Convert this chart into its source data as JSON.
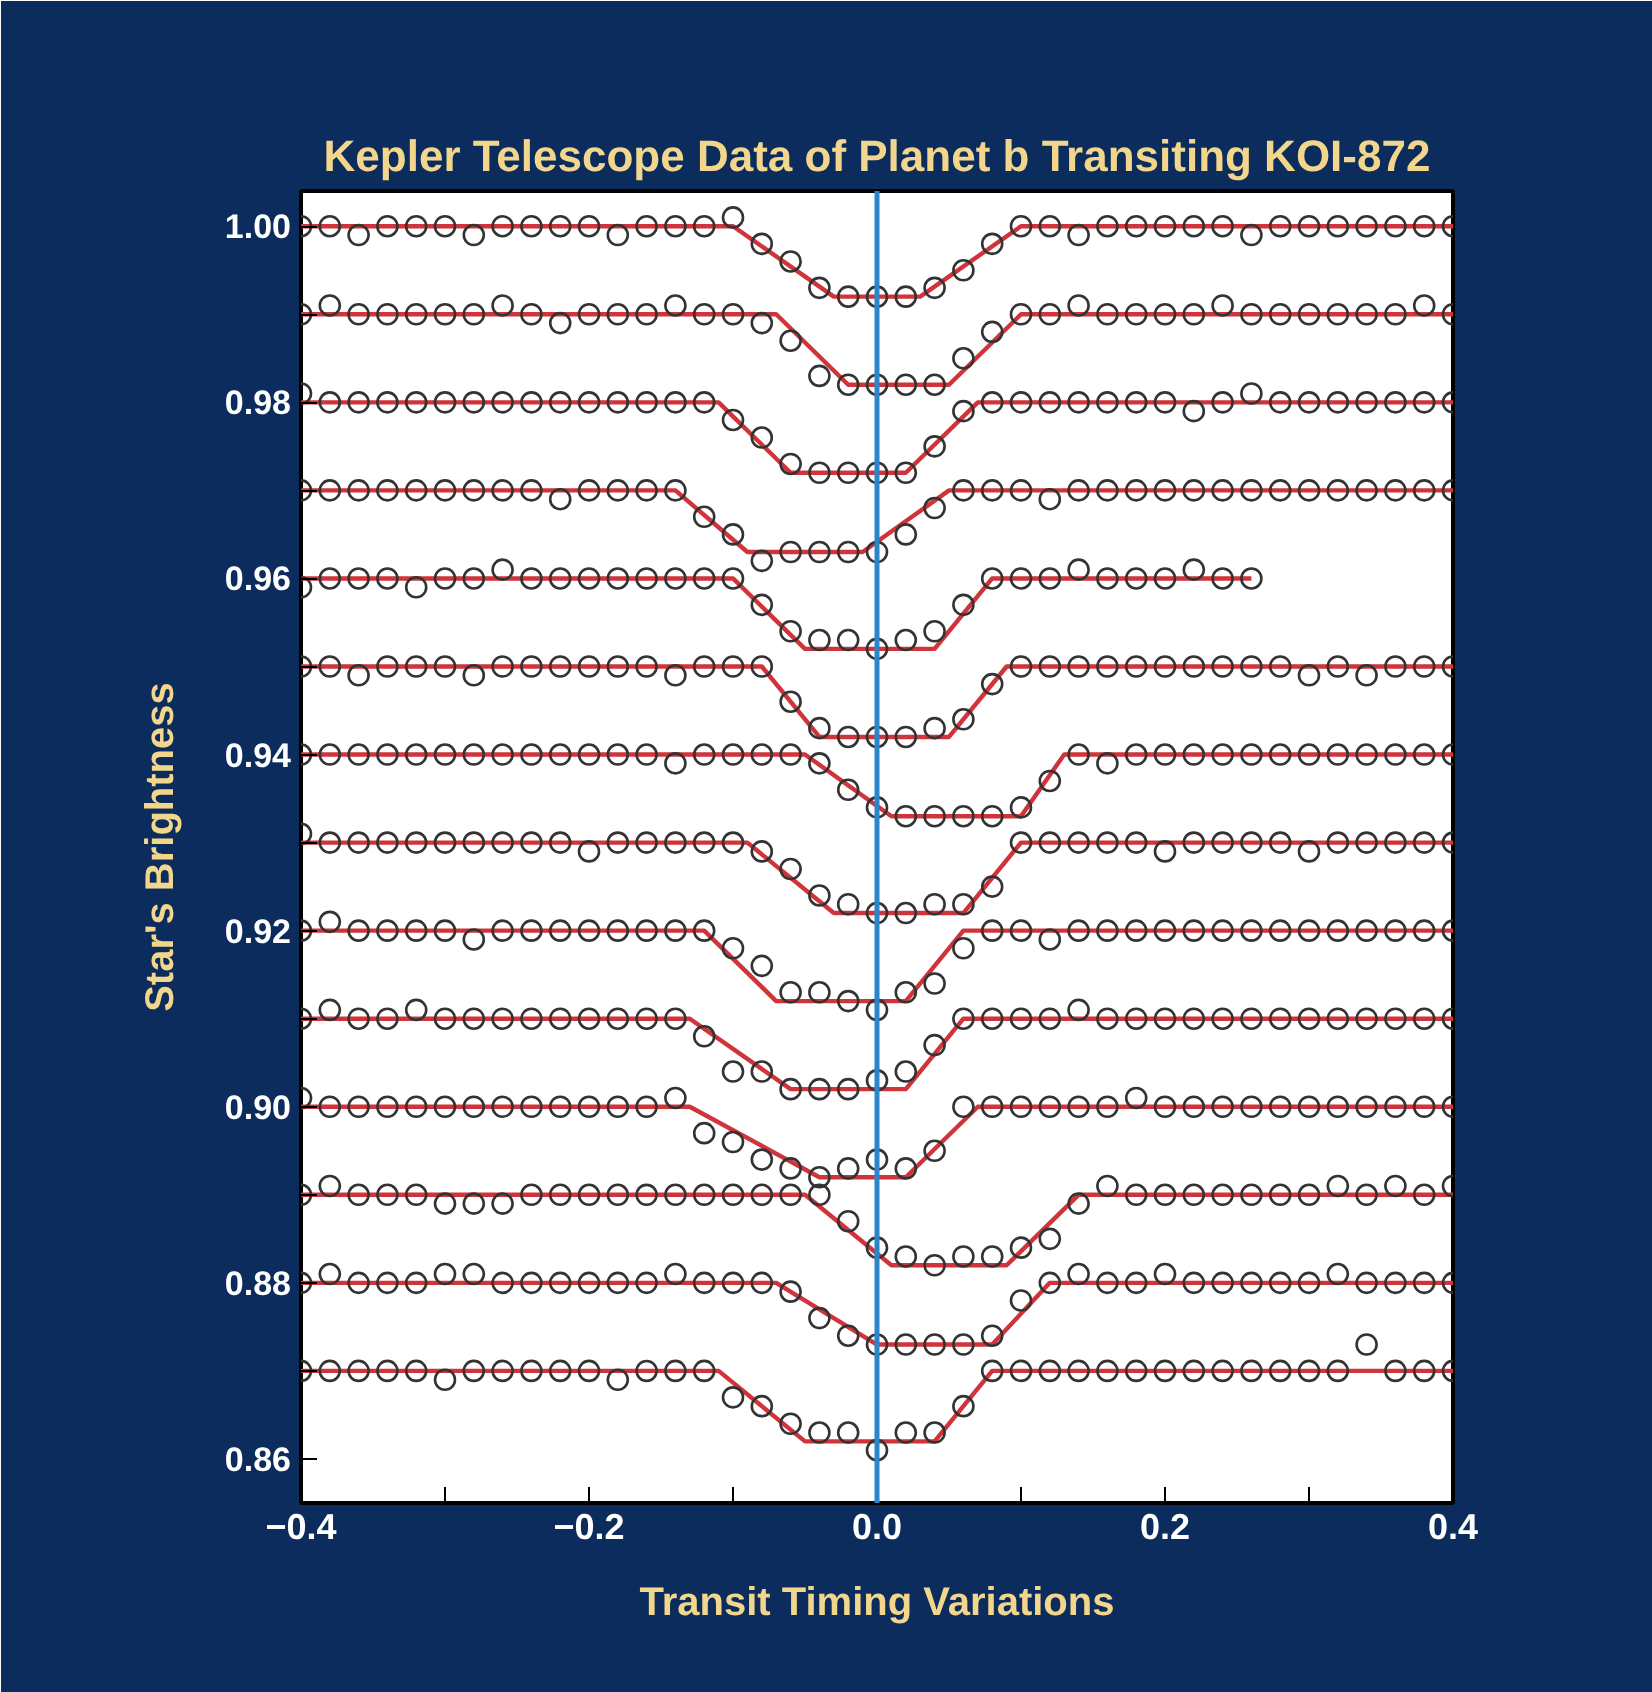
{
  "chart_data": {
    "type": "scatter",
    "title": "Kepler Telescope Data of Planet b Transiting KOI-872",
    "xlabel": "Transit Timing Variations",
    "ylabel": "Star's Brightness",
    "xlim": [
      -0.4,
      0.4
    ],
    "ylim": [
      0.855,
      1.004
    ],
    "xticks": [
      {
        "value": -0.4,
        "label": "−0.4"
      },
      {
        "value": -0.3,
        "label": null
      },
      {
        "value": -0.2,
        "label": "−0.2"
      },
      {
        "value": -0.1,
        "label": null
      },
      {
        "value": 0.0,
        "label": "0.0"
      },
      {
        "value": 0.1,
        "label": null
      },
      {
        "value": 0.2,
        "label": "0.2"
      },
      {
        "value": 0.3,
        "label": null
      },
      {
        "value": 0.4,
        "label": "0.4"
      }
    ],
    "yticks": [
      {
        "value": 0.86,
        "label": "0.86"
      },
      {
        "value": 0.87,
        "label": null
      },
      {
        "value": 0.88,
        "label": "0.88"
      },
      {
        "value": 0.89,
        "label": null
      },
      {
        "value": 0.9,
        "label": "0.90"
      },
      {
        "value": 0.91,
        "label": null
      },
      {
        "value": 0.92,
        "label": "0.92"
      },
      {
        "value": 0.93,
        "label": null
      },
      {
        "value": 0.94,
        "label": "0.94"
      },
      {
        "value": 0.95,
        "label": null
      },
      {
        "value": 0.96,
        "label": "0.96"
      },
      {
        "value": 0.97,
        "label": null
      },
      {
        "value": 0.98,
        "label": "0.98"
      },
      {
        "value": 0.99,
        "label": null
      },
      {
        "value": 1.0,
        "label": "1.00"
      }
    ],
    "grid": false,
    "ref_lines": [
      {
        "axis": "x",
        "value": 0.0,
        "color": "#2a86c8"
      }
    ],
    "x": [
      -0.4,
      -0.38,
      -0.36,
      -0.34,
      -0.32,
      -0.3,
      -0.28,
      -0.26,
      -0.24,
      -0.22,
      -0.2,
      -0.18,
      -0.16,
      -0.14,
      -0.12,
      -0.1,
      -0.08,
      -0.06,
      -0.04,
      -0.02,
      0.0,
      0.02,
      0.04,
      0.06,
      0.08,
      0.1,
      0.12,
      0.14,
      0.16,
      0.18,
      0.2,
      0.22,
      0.24,
      0.26,
      0.28,
      0.3,
      0.32,
      0.34,
      0.36,
      0.38,
      0.4
    ],
    "series": [
      {
        "type": "line",
        "marker": "none",
        "color": "#d0343a",
        "x": [
          -0.4,
          -0.1,
          -0.03,
          0.03,
          0.1,
          0.4
        ],
        "values": [
          1.0,
          1.0,
          0.992,
          0.992,
          1.0,
          1.0
        ]
      },
      {
        "marker": "circle",
        "color": "#333333",
        "values": [
          1.0,
          1.0,
          0.999,
          1.0,
          1.0,
          1.0,
          0.999,
          1.0,
          1.0,
          1.0,
          1.0,
          0.999,
          1.0,
          1.0,
          1.0,
          1.001,
          0.998,
          0.996,
          0.993,
          0.992,
          0.992,
          0.992,
          0.993,
          0.995,
          0.998,
          1.0,
          1.0,
          0.999,
          1.0,
          1.0,
          1.0,
          1.0,
          1.0,
          0.999,
          1.0,
          1.0,
          1.0,
          1.0,
          1.0,
          1.0,
          1.0
        ]
      },
      {
        "type": "line",
        "marker": "none",
        "color": "#d0343a",
        "x": [
          -0.4,
          -0.07,
          -0.02,
          0.05,
          0.1,
          0.4
        ],
        "values": [
          0.99,
          0.99,
          0.982,
          0.982,
          0.99,
          0.99
        ]
      },
      {
        "marker": "circle",
        "color": "#333333",
        "values": [
          0.99,
          0.991,
          0.99,
          0.99,
          0.99,
          0.99,
          0.99,
          0.991,
          0.99,
          0.989,
          0.99,
          0.99,
          0.99,
          0.991,
          0.99,
          0.99,
          0.989,
          0.987,
          0.983,
          0.982,
          0.982,
          0.982,
          0.982,
          0.985,
          0.988,
          0.99,
          0.99,
          0.991,
          0.99,
          0.99,
          0.99,
          0.99,
          0.991,
          0.99,
          0.99,
          0.99,
          0.99,
          0.99,
          0.99,
          0.991,
          0.99
        ]
      },
      {
        "type": "line",
        "marker": "none",
        "color": "#d0343a",
        "x": [
          -0.4,
          -0.11,
          -0.06,
          0.02,
          0.07,
          0.4
        ],
        "values": [
          0.98,
          0.98,
          0.972,
          0.972,
          0.98,
          0.98
        ]
      },
      {
        "marker": "circle",
        "color": "#333333",
        "values": [
          0.981,
          0.98,
          0.98,
          0.98,
          0.98,
          0.98,
          0.98,
          0.98,
          0.98,
          0.98,
          0.98,
          0.98,
          0.98,
          0.98,
          0.98,
          0.978,
          0.976,
          0.973,
          0.972,
          0.972,
          0.972,
          0.972,
          0.975,
          0.979,
          0.98,
          0.98,
          0.98,
          0.98,
          0.98,
          0.98,
          0.98,
          0.979,
          0.98,
          0.981,
          0.98,
          0.98,
          0.98,
          0.98,
          0.98,
          0.98,
          0.98
        ]
      },
      {
        "type": "line",
        "marker": "none",
        "color": "#d0343a",
        "x": [
          -0.4,
          -0.14,
          -0.09,
          -0.01,
          0.05,
          0.4
        ],
        "values": [
          0.97,
          0.97,
          0.963,
          0.963,
          0.97,
          0.97
        ]
      },
      {
        "marker": "circle",
        "color": "#333333",
        "values": [
          0.97,
          0.97,
          0.97,
          0.97,
          0.97,
          0.97,
          0.97,
          0.97,
          0.97,
          0.969,
          0.97,
          0.97,
          0.97,
          0.97,
          0.967,
          0.965,
          0.962,
          0.963,
          0.963,
          0.963,
          0.963,
          0.965,
          0.968,
          0.97,
          0.97,
          0.97,
          0.969,
          0.97,
          0.97,
          0.97,
          0.97,
          0.97,
          0.97,
          0.97,
          0.97,
          0.97,
          0.97,
          0.97,
          0.97,
          0.97,
          0.97
        ]
      },
      {
        "type": "line",
        "marker": "none",
        "color": "#d0343a",
        "x": [
          -0.4,
          -0.1,
          -0.05,
          0.04,
          0.08,
          0.26
        ],
        "values": [
          0.96,
          0.96,
          0.952,
          0.952,
          0.96,
          0.96
        ]
      },
      {
        "marker": "circle",
        "color": "#333333",
        "values": [
          0.959,
          0.96,
          0.96,
          0.96,
          0.959,
          0.96,
          0.96,
          0.961,
          0.96,
          0.96,
          0.96,
          0.96,
          0.96,
          0.96,
          0.96,
          0.96,
          0.957,
          0.954,
          0.953,
          0.953,
          0.952,
          0.953,
          0.954,
          0.957,
          0.96,
          0.96,
          0.96,
          0.961,
          0.96,
          0.96,
          0.96,
          0.961,
          0.96,
          0.96,
          null,
          null,
          null,
          null,
          null,
          null,
          null
        ]
      },
      {
        "type": "line",
        "marker": "none",
        "color": "#d0343a",
        "x": [
          -0.4,
          -0.08,
          -0.04,
          0.05,
          0.09,
          0.4
        ],
        "values": [
          0.95,
          0.95,
          0.942,
          0.942,
          0.95,
          0.95
        ]
      },
      {
        "marker": "circle",
        "color": "#333333",
        "values": [
          0.95,
          0.95,
          0.949,
          0.95,
          0.95,
          0.95,
          0.949,
          0.95,
          0.95,
          0.95,
          0.95,
          0.95,
          0.95,
          0.949,
          0.95,
          0.95,
          0.95,
          0.946,
          0.943,
          0.942,
          0.942,
          0.942,
          0.943,
          0.944,
          0.948,
          0.95,
          0.95,
          0.95,
          0.95,
          0.95,
          0.95,
          0.95,
          0.95,
          0.95,
          0.95,
          0.949,
          0.95,
          0.949,
          0.95,
          0.95,
          0.95
        ]
      },
      {
        "type": "line",
        "marker": "none",
        "color": "#d0343a",
        "x": [
          -0.4,
          -0.05,
          0.01,
          0.1,
          0.13,
          0.4
        ],
        "values": [
          0.94,
          0.94,
          0.933,
          0.933,
          0.94,
          0.94
        ]
      },
      {
        "marker": "circle",
        "color": "#333333",
        "values": [
          0.94,
          0.94,
          0.94,
          0.94,
          0.94,
          0.94,
          0.94,
          0.94,
          0.94,
          0.94,
          0.94,
          0.94,
          0.94,
          0.939,
          0.94,
          0.94,
          0.94,
          0.94,
          0.939,
          0.936,
          0.934,
          0.933,
          0.933,
          0.933,
          0.933,
          0.934,
          0.937,
          0.94,
          0.939,
          0.94,
          0.94,
          0.94,
          0.94,
          0.94,
          0.94,
          0.94,
          0.94,
          0.94,
          0.94,
          0.94,
          0.94
        ]
      },
      {
        "type": "line",
        "marker": "none",
        "color": "#d0343a",
        "x": [
          -0.4,
          -0.09,
          -0.03,
          0.06,
          0.1,
          0.4
        ],
        "values": [
          0.93,
          0.93,
          0.922,
          0.922,
          0.93,
          0.93
        ]
      },
      {
        "marker": "circle",
        "color": "#333333",
        "values": [
          0.931,
          0.93,
          0.93,
          0.93,
          0.93,
          0.93,
          0.93,
          0.93,
          0.93,
          0.93,
          0.929,
          0.93,
          0.93,
          0.93,
          0.93,
          0.93,
          0.929,
          0.927,
          0.924,
          0.923,
          0.922,
          0.922,
          0.923,
          0.923,
          0.925,
          0.93,
          0.93,
          0.93,
          0.93,
          0.93,
          0.929,
          0.93,
          0.93,
          0.93,
          0.93,
          0.929,
          0.93,
          0.93,
          0.93,
          0.93,
          0.93
        ]
      },
      {
        "type": "line",
        "marker": "none",
        "color": "#d0343a",
        "x": [
          -0.4,
          -0.12,
          -0.07,
          0.02,
          0.06,
          0.4
        ],
        "values": [
          0.92,
          0.92,
          0.912,
          0.912,
          0.92,
          0.92
        ]
      },
      {
        "marker": "circle",
        "color": "#333333",
        "values": [
          0.92,
          0.921,
          0.92,
          0.92,
          0.92,
          0.92,
          0.919,
          0.92,
          0.92,
          0.92,
          0.92,
          0.92,
          0.92,
          0.92,
          0.92,
          0.918,
          0.916,
          0.913,
          0.913,
          0.912,
          0.911,
          0.913,
          0.914,
          0.918,
          0.92,
          0.92,
          0.919,
          0.92,
          0.92,
          0.92,
          0.92,
          0.92,
          0.92,
          0.92,
          0.92,
          0.92,
          0.92,
          0.92,
          0.92,
          0.92,
          0.92
        ]
      },
      {
        "type": "line",
        "marker": "none",
        "color": "#d0343a",
        "x": [
          -0.4,
          -0.13,
          -0.06,
          0.02,
          0.06,
          0.4
        ],
        "values": [
          0.91,
          0.91,
          0.902,
          0.902,
          0.91,
          0.91
        ]
      },
      {
        "marker": "circle",
        "color": "#333333",
        "values": [
          0.91,
          0.911,
          0.91,
          0.91,
          0.911,
          0.91,
          0.91,
          0.91,
          0.91,
          0.91,
          0.91,
          0.91,
          0.91,
          0.91,
          0.908,
          0.904,
          0.904,
          0.902,
          0.902,
          0.902,
          0.903,
          0.904,
          0.907,
          0.91,
          0.91,
          0.91,
          0.91,
          0.911,
          0.91,
          0.91,
          0.91,
          0.91,
          0.91,
          0.91,
          0.91,
          0.91,
          0.91,
          0.91,
          0.91,
          0.91,
          0.91
        ]
      },
      {
        "type": "line",
        "marker": "none",
        "color": "#d0343a",
        "x": [
          -0.4,
          -0.13,
          -0.04,
          0.02,
          0.07,
          0.4
        ],
        "values": [
          0.9,
          0.9,
          0.892,
          0.892,
          0.9,
          0.9
        ]
      },
      {
        "marker": "circle",
        "color": "#333333",
        "values": [
          0.901,
          0.9,
          0.9,
          0.9,
          0.9,
          0.9,
          0.9,
          0.9,
          0.9,
          0.9,
          0.9,
          0.9,
          0.9,
          0.901,
          0.897,
          0.896,
          0.894,
          0.893,
          0.892,
          0.893,
          0.894,
          0.893,
          0.895,
          0.9,
          0.9,
          0.9,
          0.9,
          0.9,
          0.9,
          0.901,
          0.9,
          0.9,
          0.9,
          0.9,
          0.9,
          0.9,
          0.9,
          0.9,
          0.9,
          0.9,
          0.9
        ]
      },
      {
        "type": "line",
        "marker": "none",
        "color": "#d0343a",
        "x": [
          -0.4,
          -0.05,
          0.01,
          0.09,
          0.14,
          0.4
        ],
        "values": [
          0.89,
          0.89,
          0.882,
          0.882,
          0.89,
          0.89
        ]
      },
      {
        "marker": "circle",
        "color": "#333333",
        "values": [
          0.89,
          0.891,
          0.89,
          0.89,
          0.89,
          0.889,
          0.889,
          0.889,
          0.89,
          0.89,
          0.89,
          0.89,
          0.89,
          0.89,
          0.89,
          0.89,
          0.89,
          0.89,
          0.89,
          0.887,
          0.884,
          0.883,
          0.882,
          0.883,
          0.883,
          0.884,
          0.885,
          0.889,
          0.891,
          0.89,
          0.89,
          0.89,
          0.89,
          0.89,
          0.89,
          0.89,
          0.891,
          0.89,
          0.891,
          0.89,
          0.891
        ]
      },
      {
        "type": "line",
        "marker": "none",
        "color": "#d0343a",
        "x": [
          -0.4,
          -0.07,
          0.0,
          0.08,
          0.12,
          0.4
        ],
        "values": [
          0.88,
          0.88,
          0.873,
          0.873,
          0.88,
          0.88
        ]
      },
      {
        "marker": "circle",
        "color": "#333333",
        "values": [
          0.88,
          0.881,
          0.88,
          0.88,
          0.88,
          0.881,
          0.881,
          0.88,
          0.88,
          0.88,
          0.88,
          0.88,
          0.88,
          0.881,
          0.88,
          0.88,
          0.88,
          0.879,
          0.876,
          0.874,
          0.873,
          0.873,
          0.873,
          0.873,
          0.874,
          0.878,
          0.88,
          0.881,
          0.88,
          0.88,
          0.881,
          0.88,
          0.88,
          0.88,
          0.88,
          0.88,
          0.881,
          0.88,
          0.88,
          0.88,
          0.88
        ]
      },
      {
        "type": "line",
        "marker": "none",
        "color": "#d0343a",
        "x": [
          -0.4,
          -0.11,
          -0.05,
          0.04,
          0.08,
          0.4
        ],
        "values": [
          0.87,
          0.87,
          0.862,
          0.862,
          0.87,
          0.87
        ]
      },
      {
        "marker": "circle",
        "color": "#333333",
        "values": [
          0.87,
          0.87,
          0.87,
          0.87,
          0.87,
          0.869,
          0.87,
          0.87,
          0.87,
          0.87,
          0.87,
          0.869,
          0.87,
          0.87,
          0.87,
          0.867,
          0.866,
          0.864,
          0.863,
          0.863,
          0.861,
          0.863,
          0.863,
          0.866,
          0.87,
          0.87,
          0.87,
          0.87,
          0.87,
          0.87,
          0.87,
          0.87,
          0.87,
          0.87,
          0.87,
          0.87,
          0.87,
          0.873,
          0.87,
          0.87,
          0.87
        ]
      }
    ]
  }
}
